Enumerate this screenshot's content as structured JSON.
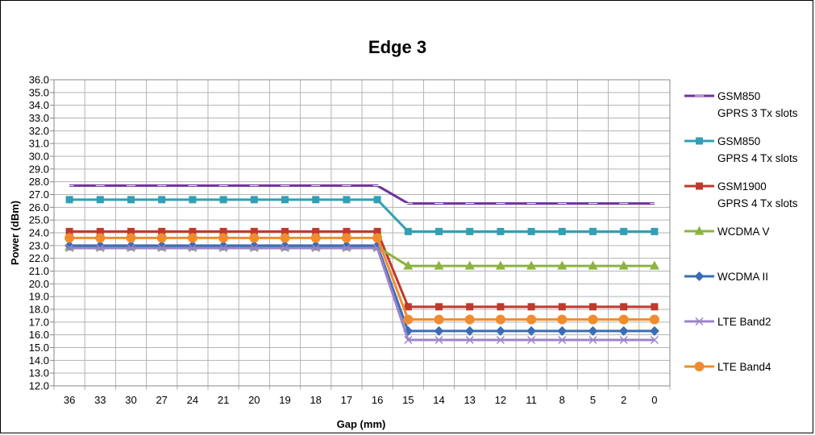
{
  "chart_data": {
    "type": "line",
    "title": "Edge 3",
    "xlabel": "Gap (mm)",
    "ylabel": "Power (dBm)",
    "categories": [
      "36",
      "33",
      "30",
      "27",
      "24",
      "21",
      "20",
      "19",
      "18",
      "17",
      "16",
      "15",
      "14",
      "13",
      "12",
      "11",
      "8",
      "5",
      "2",
      "0"
    ],
    "ylim": [
      12.0,
      36.0
    ],
    "ytick_step": 1.0,
    "grid": "vertical-and-horizontal",
    "legend_position": "right",
    "series": [
      {
        "name": "GSM850\nGPRS 3 Tx slots",
        "color": "#7030a0",
        "marker": "dash",
        "values": [
          27.7,
          27.7,
          27.7,
          27.7,
          27.7,
          27.7,
          27.7,
          27.7,
          27.7,
          27.7,
          27.7,
          26.3,
          26.3,
          26.3,
          26.3,
          26.3,
          26.3,
          26.3,
          26.3,
          26.3
        ]
      },
      {
        "name": "GSM850\nGPRS 4 Tx slots",
        "color": "#31a0b4",
        "marker": "square",
        "values": [
          26.6,
          26.6,
          26.6,
          26.6,
          26.6,
          26.6,
          26.6,
          26.6,
          26.6,
          26.6,
          26.6,
          24.1,
          24.1,
          24.1,
          24.1,
          24.1,
          24.1,
          24.1,
          24.1,
          24.1
        ]
      },
      {
        "name": "GSM1900\nGPRS 4 Tx slots",
        "color": "#c0392b",
        "marker": "square",
        "values": [
          24.1,
          24.1,
          24.1,
          24.1,
          24.1,
          24.1,
          24.1,
          24.1,
          24.1,
          24.1,
          24.1,
          18.2,
          18.2,
          18.2,
          18.2,
          18.2,
          18.2,
          18.2,
          18.2,
          18.2
        ]
      },
      {
        "name": "WCDMA V",
        "color": "#8db33f",
        "marker": "triangle",
        "values": [
          22.9,
          22.9,
          22.9,
          22.9,
          22.9,
          22.9,
          22.9,
          22.9,
          22.9,
          22.9,
          22.9,
          21.4,
          21.4,
          21.4,
          21.4,
          21.4,
          21.4,
          21.4,
          21.4,
          21.4
        ]
      },
      {
        "name": "WCDMA II",
        "color": "#3a6db5",
        "marker": "diamond",
        "values": [
          23.0,
          23.0,
          23.0,
          23.0,
          23.0,
          23.0,
          23.0,
          23.0,
          23.0,
          23.0,
          23.0,
          16.3,
          16.3,
          16.3,
          16.3,
          16.3,
          16.3,
          16.3,
          16.3,
          16.3
        ]
      },
      {
        "name": "LTE Band2",
        "color": "#9b84c9",
        "marker": "x",
        "values": [
          22.8,
          22.8,
          22.8,
          22.8,
          22.8,
          22.8,
          22.8,
          22.8,
          22.8,
          22.8,
          22.8,
          15.6,
          15.6,
          15.6,
          15.6,
          15.6,
          15.6,
          15.6,
          15.6,
          15.6
        ]
      },
      {
        "name": "LTE Band4",
        "color": "#f08c2f",
        "marker": "circle",
        "values": [
          23.6,
          23.6,
          23.6,
          23.6,
          23.6,
          23.6,
          23.6,
          23.6,
          23.6,
          23.6,
          23.6,
          17.2,
          17.2,
          17.2,
          17.2,
          17.2,
          17.2,
          17.2,
          17.2,
          17.2
        ]
      }
    ]
  }
}
